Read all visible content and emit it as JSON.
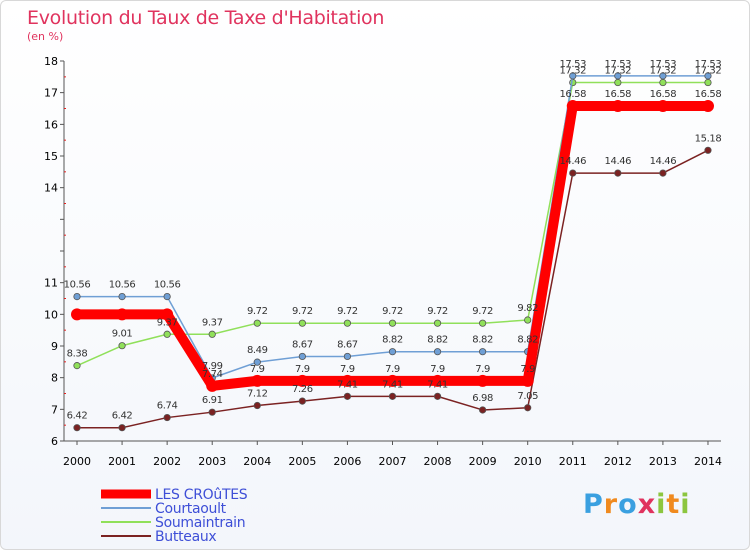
{
  "chart_data": {
    "type": "line",
    "title": "Evolution du Taux de Taxe d'Habitation",
    "unit_label": "(en %)",
    "x": [
      "2000",
      "2001",
      "2002",
      "2003",
      "2004",
      "2005",
      "2006",
      "2007",
      "2008",
      "2009",
      "2010",
      "2011",
      "2012",
      "2013",
      "2014"
    ],
    "ylim": [
      6,
      18
    ],
    "yticks": [
      6,
      7,
      8,
      9,
      10,
      11,
      12,
      13,
      14,
      15,
      16,
      17,
      18
    ],
    "yticks_visible": [
      "6",
      "7",
      "8",
      "9",
      "10",
      "11",
      "",
      "",
      "14",
      "15",
      "16",
      "17",
      "18"
    ],
    "grid": false,
    "legend_position": "bottom-left",
    "series": [
      {
        "name": "LES CROûTES",
        "color": "#ff0000",
        "values": [
          10,
          10,
          10,
          7.74,
          7.9,
          7.9,
          7.9,
          7.9,
          7.9,
          7.9,
          7.9,
          16.58,
          16.58,
          16.58,
          16.58
        ],
        "labels": [
          "",
          "",
          "",
          "7.74",
          "7.9",
          "7.9",
          "7.9",
          "7.9",
          "7.9",
          "7.9",
          "7.9",
          "16.58",
          "16.58",
          "16.58",
          "16.58"
        ]
      },
      {
        "name": "Courtaoult",
        "color": "#6f9fd5",
        "values": [
          10.56,
          10.56,
          10.56,
          7.99,
          8.49,
          8.67,
          8.67,
          8.82,
          8.82,
          8.82,
          8.82,
          17.53,
          17.53,
          17.53,
          17.53
        ],
        "labels": [
          "10.56",
          "10.56",
          "10.56",
          "7.99",
          "8.49",
          "8.67",
          "8.67",
          "8.82",
          "8.82",
          "8.82",
          "8.82",
          "17.53",
          "17.53",
          "17.53",
          "17.53"
        ]
      },
      {
        "name": "Soumaintrain",
        "color": "#90e05a",
        "values": [
          8.38,
          9.01,
          9.37,
          9.37,
          9.72,
          9.72,
          9.72,
          9.72,
          9.72,
          9.72,
          9.82,
          17.32,
          17.32,
          17.32,
          17.32
        ],
        "labels": [
          "8.38",
          "9.01",
          "9.37",
          "9.37",
          "9.72",
          "9.72",
          "9.72",
          "9.72",
          "9.72",
          "9.72",
          "9.82",
          "17.32",
          "17.32",
          "17.32",
          "17.32"
        ]
      },
      {
        "name": "Butteaux",
        "color": "#7b2222",
        "values": [
          6.42,
          6.42,
          6.74,
          6.91,
          7.12,
          7.26,
          7.41,
          7.41,
          7.41,
          6.98,
          7.05,
          14.46,
          14.46,
          14.46,
          15.18
        ],
        "labels": [
          "6.42",
          "6.42",
          "6.74",
          "6.91",
          "7.12",
          "7.26",
          "7.41",
          "7.41",
          "7.41",
          "6.98",
          "7.05",
          "14.46",
          "14.46",
          "14.46",
          "15.18"
        ]
      }
    ]
  },
  "legend": [
    {
      "name": "LES CROûTES",
      "color": "#ff0000"
    },
    {
      "name": "Courtaoult",
      "color": "#6f9fd5"
    },
    {
      "name": "Soumaintrain",
      "color": "#90e05a"
    },
    {
      "name": "Butteaux",
      "color": "#7b2222"
    }
  ],
  "logo": {
    "parts": [
      "P",
      "r",
      "o",
      "x",
      "i",
      "t",
      "i"
    ],
    "colors": [
      "#3aa0e0",
      "#f08a1e",
      "#3aa0e0",
      "#e0335e",
      "#8cc63f",
      "#f08a1e",
      "#8cc63f"
    ]
  }
}
